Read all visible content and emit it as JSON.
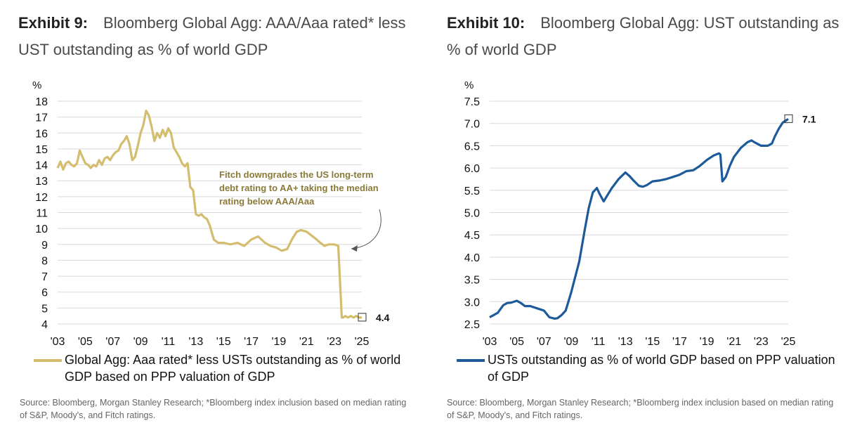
{
  "exhibit9": {
    "label": "Exhibit 9:",
    "title": "Bloomberg Global Agg: AAA/Aaa rated* less UST outstanding as % of world GDP",
    "legend": "Global Agg: Aaa rated* less USTs outstanding as % of world GDP based on PPP valuation of GDP",
    "source": "Source: Bloomberg, Morgan Stanley Research; *Bloomberg index inclusion based on median rating of S&P, Moody's, and Fitch ratings.",
    "annotation": [
      "Fitch downgrades the US long-term",
      "debt rating to AA+ taking the median",
      "rating below AAA/Aaa"
    ],
    "color": "#d4bd6f",
    "chart_data": {
      "type": "line",
      "ylabel": "%",
      "ylim": [
        4,
        18
      ],
      "yticks": [
        "4",
        "5",
        "6",
        "7",
        "8",
        "9",
        "10",
        "11",
        "12",
        "13",
        "14",
        "15",
        "16",
        "17",
        "18"
      ],
      "xlim": [
        2003,
        2025
      ],
      "xticks": [
        "'03",
        "'05",
        "'07",
        "'09",
        "'11",
        "'13",
        "'15",
        "'17",
        "'19",
        "'21",
        "'23",
        "'25"
      ],
      "end_label": "4.4",
      "series": [
        {
          "name": "Global Agg: Aaa rated* less USTs outstanding as % of world GDP based on PPP valuation of GDP",
          "x": [
            2003.0,
            2003.2,
            2003.4,
            2003.6,
            2003.8,
            2004.0,
            2004.2,
            2004.4,
            2004.6,
            2004.8,
            2005.0,
            2005.2,
            2005.4,
            2005.6,
            2005.8,
            2006.0,
            2006.2,
            2006.4,
            2006.6,
            2006.8,
            2007.0,
            2007.2,
            2007.4,
            2007.6,
            2007.8,
            2008.0,
            2008.2,
            2008.4,
            2008.6,
            2008.8,
            2009.0,
            2009.2,
            2009.4,
            2009.6,
            2009.8,
            2010.0,
            2010.2,
            2010.4,
            2010.6,
            2010.8,
            2011.0,
            2011.2,
            2011.4,
            2011.6,
            2011.8,
            2012.0,
            2012.2,
            2012.4,
            2012.6,
            2012.8,
            2013.0,
            2013.2,
            2013.4,
            2013.6,
            2013.8,
            2014.0,
            2014.3,
            2014.6,
            2015.0,
            2015.5,
            2016.0,
            2016.5,
            2017.0,
            2017.5,
            2018.0,
            2018.4,
            2018.8,
            2019.2,
            2019.6,
            2020.0,
            2020.3,
            2020.6,
            2021.0,
            2021.3,
            2021.6,
            2022.0,
            2022.3,
            2022.6,
            2023.0,
            2023.3,
            2023.55,
            2023.65,
            2023.8,
            2024.0,
            2024.2,
            2024.4,
            2024.6,
            2024.8,
            2025.0
          ],
          "values": [
            13.8,
            14.2,
            13.7,
            14.1,
            14.2,
            14.0,
            13.9,
            14.1,
            14.9,
            14.5,
            14.1,
            14.0,
            13.8,
            14.0,
            13.9,
            14.3,
            14.0,
            14.4,
            14.5,
            14.3,
            14.6,
            14.8,
            14.9,
            15.3,
            15.5,
            15.8,
            15.3,
            14.3,
            14.5,
            15.2,
            16.0,
            16.5,
            17.4,
            17.1,
            16.4,
            15.5,
            16.0,
            15.7,
            16.2,
            15.8,
            16.3,
            16.0,
            15.1,
            14.8,
            14.5,
            14.1,
            13.9,
            14.1,
            12.6,
            12.4,
            10.9,
            10.8,
            10.9,
            10.7,
            10.6,
            10.2,
            9.3,
            9.1,
            9.1,
            9.0,
            9.1,
            8.9,
            9.3,
            9.5,
            9.1,
            8.9,
            8.8,
            8.6,
            8.7,
            9.4,
            9.8,
            9.9,
            9.8,
            9.6,
            9.4,
            9.1,
            8.9,
            9.0,
            9.0,
            8.9,
            4.4,
            4.4,
            4.5,
            4.4,
            4.5,
            4.4,
            4.5,
            4.4,
            4.4
          ]
        }
      ]
    }
  },
  "exhibit10": {
    "label": "Exhibit 10:",
    "title": "Bloomberg Global Agg: UST outstanding as % of world GDP",
    "legend": "USTs outstanding as % of world GDP based on PPP valuation of GDP",
    "source": "Source: Bloomberg, Morgan Stanley Research; *Bloomberg index inclusion based on median rating of S&P, Moody's, and Fitch ratings.",
    "color": "#1d5a9a",
    "chart_data": {
      "type": "line",
      "ylabel": "%",
      "ylim": [
        2.5,
        7.5
      ],
      "yticks": [
        "2.5",
        "3.0",
        "3.5",
        "4.0",
        "4.5",
        "5.0",
        "5.5",
        "6.0",
        "6.5",
        "7.0",
        "7.5"
      ],
      "xlim": [
        2003,
        2025
      ],
      "xticks": [
        "'03",
        "'05",
        "'07",
        "'09",
        "'11",
        "'13",
        "'15",
        "'17",
        "'19",
        "'21",
        "'23",
        "'25"
      ],
      "end_label": "7.1",
      "series": [
        {
          "name": "USTs outstanding as % of world GDP based on PPP valuation of GDP",
          "x": [
            2003.0,
            2003.3,
            2003.6,
            2004.0,
            2004.3,
            2004.6,
            2005.0,
            2005.3,
            2005.6,
            2006.0,
            2006.5,
            2007.0,
            2007.4,
            2007.8,
            2008.0,
            2008.3,
            2008.6,
            2009.0,
            2009.3,
            2009.6,
            2010.0,
            2010.3,
            2010.6,
            2010.9,
            2011.1,
            2011.4,
            2011.7,
            2012.0,
            2012.5,
            2013.0,
            2013.3,
            2013.6,
            2014.0,
            2014.3,
            2014.6,
            2015.0,
            2015.5,
            2016.0,
            2016.5,
            2017.0,
            2017.5,
            2018.0,
            2018.5,
            2019.0,
            2019.5,
            2019.9,
            2020.0,
            2020.15,
            2020.4,
            2020.7,
            2021.0,
            2021.5,
            2022.0,
            2022.3,
            2022.5,
            2023.0,
            2023.5,
            2023.8,
            2024.0,
            2024.3,
            2024.6,
            2025.0
          ],
          "values": [
            2.65,
            2.7,
            2.75,
            2.92,
            2.97,
            2.98,
            3.02,
            2.97,
            2.9,
            2.9,
            2.85,
            2.8,
            2.65,
            2.62,
            2.63,
            2.7,
            2.8,
            3.2,
            3.55,
            3.9,
            4.6,
            5.1,
            5.45,
            5.55,
            5.42,
            5.25,
            5.4,
            5.55,
            5.75,
            5.9,
            5.82,
            5.72,
            5.6,
            5.58,
            5.62,
            5.7,
            5.72,
            5.75,
            5.8,
            5.85,
            5.93,
            5.95,
            6.05,
            6.18,
            6.28,
            6.33,
            6.3,
            5.7,
            5.8,
            6.05,
            6.25,
            6.45,
            6.58,
            6.62,
            6.58,
            6.5,
            6.5,
            6.55,
            6.7,
            6.88,
            7.02,
            7.1
          ]
        }
      ]
    }
  }
}
